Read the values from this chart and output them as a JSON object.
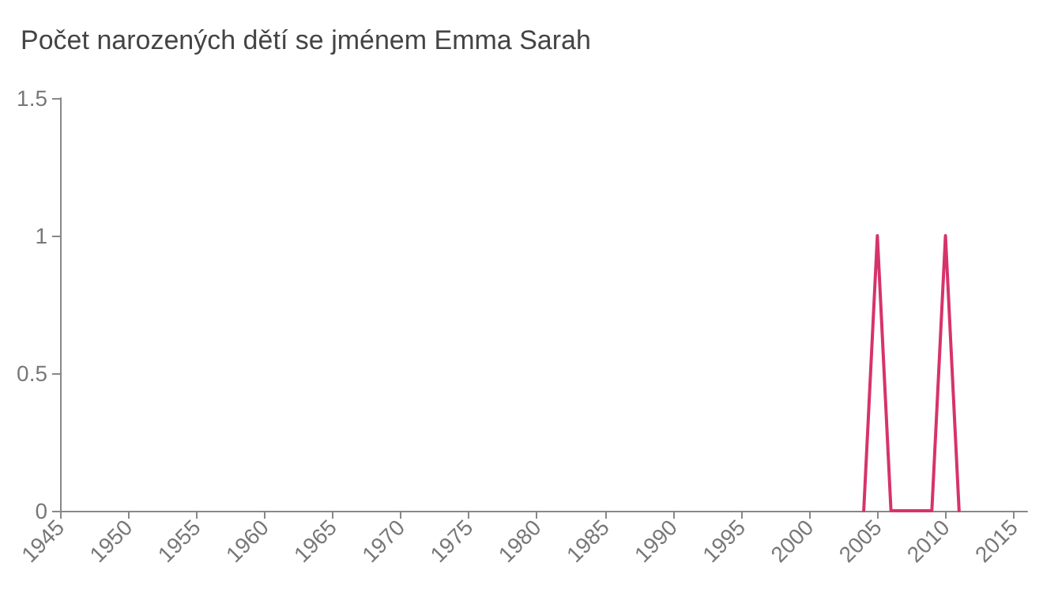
{
  "chart_data": {
    "type": "line",
    "title": "Počet narozených dětí se jménem Emma Sarah",
    "x": [
      2004,
      2005,
      2006,
      2007,
      2008,
      2009,
      2010,
      2011
    ],
    "series": [
      {
        "color": "#d6336c",
        "values": [
          0,
          1,
          0,
          0,
          0,
          0,
          1,
          0
        ]
      }
    ],
    "xlim": [
      1945,
      2016
    ],
    "xticks": [
      1945,
      1950,
      1955,
      1960,
      1965,
      1970,
      1975,
      1980,
      1985,
      1990,
      1995,
      2000,
      2005,
      2010,
      2015
    ],
    "ylim": [
      0,
      1.5
    ],
    "yticks": [
      0,
      0.5,
      1,
      1.5
    ],
    "grid": false,
    "marker": "none",
    "line_style": "solid"
  }
}
